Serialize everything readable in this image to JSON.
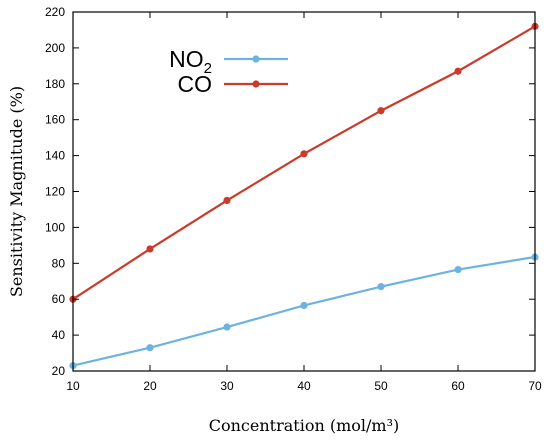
{
  "chart_data": {
    "type": "line",
    "title": "",
    "xlabel": "Concentration (mol/m³)",
    "ylabel": "Sensitivity Magnitude (%)",
    "xlim": [
      10,
      70
    ],
    "ylim": [
      20,
      220
    ],
    "x": [
      10,
      20,
      30,
      40,
      50,
      60,
      70
    ],
    "xticks": [
      "10",
      "20",
      "30",
      "40",
      "50",
      "60",
      "70"
    ],
    "yticks": [
      "20",
      "40",
      "60",
      "80",
      "100",
      "120",
      "140",
      "160",
      "180",
      "200",
      "220"
    ],
    "grid": false,
    "legend_position": "top-left",
    "series": [
      {
        "name": "NO2",
        "name_main": "NO",
        "name_sub": "2",
        "color": "#6db3e0",
        "values": [
          23,
          33,
          44.5,
          56.5,
          67,
          76.5,
          83.5
        ]
      },
      {
        "name": "CO",
        "name_main": "CO",
        "name_sub": "",
        "color": "#cc3a2a",
        "values": [
          60,
          88,
          115,
          141,
          165,
          187,
          212
        ]
      }
    ]
  }
}
